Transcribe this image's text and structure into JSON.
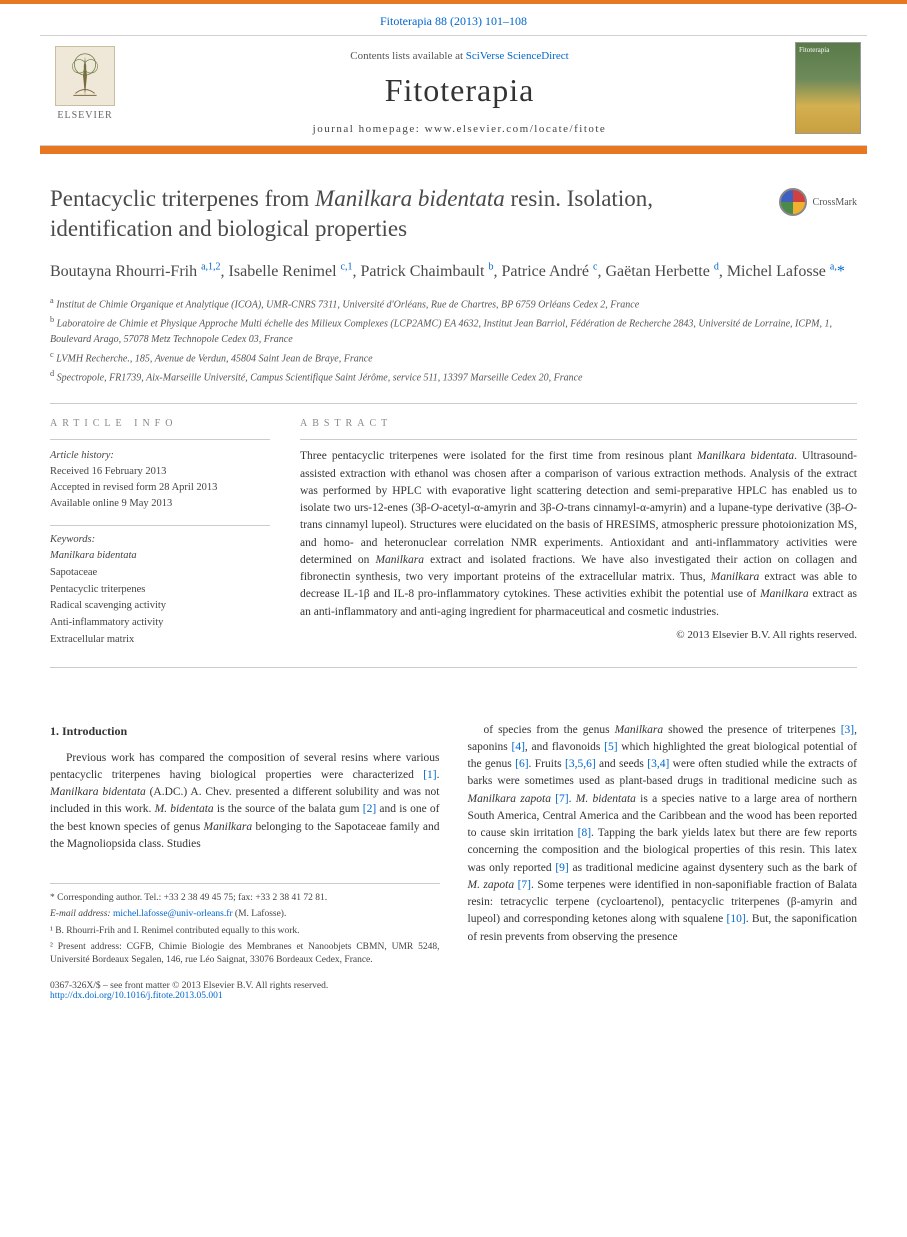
{
  "header": {
    "citation": "Fitoterapia 88 (2013) 101–108",
    "contents_prefix": "Contents lists available at ",
    "contents_link": "SciVerse ScienceDirect",
    "journal_name": "Fitoterapia",
    "homepage_prefix": "journal homepage: ",
    "homepage_url": "www.elsevier.com/locate/fitote",
    "publisher": "ELSEVIER"
  },
  "colors": {
    "accent": "#e87722",
    "link": "#0066cc",
    "text": "#333333",
    "muted": "#555555"
  },
  "article": {
    "title_1": "Pentacyclic triterpenes from ",
    "title_em": "Manilkara bidentata",
    "title_2": " resin. Isolation, identification and biological properties",
    "crossmark": "CrossMark",
    "authors_html": "Boutayna Rhourri-Frih <sup>a,1,2</sup>, Isabelle Renimel <sup>c,1</sup>, Patrick Chaimbault <sup>b</sup>, Patrice André <sup>c</sup>, Gaëtan Herbette <sup>d</sup>, Michel Lafosse <sup>a,</sup><span class='corr'>*</span>",
    "affiliations": [
      "<sup>a</sup> Institut de Chimie Organique et Analytique (ICOA), UMR-CNRS 7311, Université d'Orléans, Rue de Chartres, BP 6759 Orléans Cedex 2, France",
      "<sup>b</sup> Laboratoire de Chimie et Physique Approche Multi échelle des Milieux Complexes (LCP2AMC) EA 4632, Institut Jean Barriol, Fédération de Recherche 2843, Université de Lorraine, ICPM, 1, Boulevard Arago, 57078 Metz Technopole Cedex 03, France",
      "<sup>c</sup> LVMH Recherche., 185, Avenue de Verdun, 45804 Saint Jean de Braye, France",
      "<sup>d</sup> Spectropole, FR1739, Aix-Marseille Université, Campus Scientifique Saint Jérôme, service 511, 13397 Marseille Cedex 20, France"
    ]
  },
  "info": {
    "label": "ARTICLE INFO",
    "history_head": "Article history:",
    "history": [
      "Received 16 February 2013",
      "Accepted in revised form 28 April 2013",
      "Available online 9 May 2013"
    ],
    "keywords_head": "Keywords:",
    "keywords": [
      "Manilkara bidentata",
      "Sapotaceae",
      "Pentacyclic triterpenes",
      "Radical scavenging activity",
      "Anti-inflammatory activity",
      "Extracellular matrix"
    ]
  },
  "abstract": {
    "label": "ABSTRACT",
    "text": "Three pentacyclic triterpenes were isolated for the first time from resinous plant <em>Manilkara bidentata</em>. Ultrasound-assisted extraction with ethanol was chosen after a comparison of various extraction methods. Analysis of the extract was performed by HPLC with evaporative light scattering detection and semi-preparative HPLC has enabled us to isolate two urs-12-enes (3β-<em>O</em>-acetyl-α-amyrin and 3β-<em>O</em>-trans cinnamyl-α-amyrin) and a lupane-type derivative (3β-<em>O</em>-trans cinnamyl lupeol). Structures were elucidated on the basis of HRESIMS, atmospheric pressure photoionization MS, and homo- and heteronuclear correlation NMR experiments. Antioxidant and anti-inflammatory activities were determined on <em>Manilkara</em> extract and isolated fractions. We have also investigated their action on collagen and fibronectin synthesis, two very important proteins of the extracellular matrix. Thus, <em>Manilkara</em> extract was able to decrease IL-1β and IL-8 pro-inflammatory cytokines. These activities exhibit the potential use of <em>Manilkara</em> extract as an anti-inflammatory and anti-aging ingredient for pharmaceutical and cosmetic industries.",
    "copyright": "© 2013 Elsevier B.V. All rights reserved."
  },
  "body": {
    "section_head": "1. Introduction",
    "col1_p1": "Previous work has compared the composition of several resins where various pentacyclic triterpenes having biological properties were characterized <a>[1]</a>. <em>Manilkara bidentata</em> (A.DC.) A. Chev. presented a different solubility and was not included in this work. <em>M. bidentata</em> is the source of the balata gum <a>[2]</a> and is one of the best known species of genus <em>Manilkara</em> belonging to the Sapotaceae family and the Magnoliopsida class. Studies",
    "col2_p1": "of species from the genus <em>Manilkara</em> showed the presence of triterpenes <a>[3]</a>, saponins <a>[4]</a>, and flavonoids <a>[5]</a> which highlighted the great biological potential of the genus <a>[6]</a>. Fruits <a>[3,5,6]</a> and seeds <a>[3,4]</a> were often studied while the extracts of barks were sometimes used as plant-based drugs in traditional medicine such as <em>Manilkara zapota</em> <a>[7]</a>. <em>M. bidentata</em> is a species native to a large area of northern South America, Central America and the Caribbean and the wood has been reported to cause skin irritation <a>[8]</a>. Tapping the bark yields latex but there are few reports concerning the composition and the biological properties of this resin. This latex was only reported <a>[9]</a> as traditional medicine against dysentery such as the bark of <em>M. zapota</em> <a>[7]</a>. Some terpenes were identified in non-saponifiable fraction of Balata resin: tetracyclic terpene (cycloartenol), pentacyclic triterpenes (β-amyrin and lupeol) and corresponding ketones along with squalene <a>[10]</a>. But, the saponification of resin prevents from observing the presence"
  },
  "footnotes": {
    "corr": "* Corresponding author. Tel.: +33 2 38 49 45 75; fax: +33 2 38 41 72 81.",
    "email_label": "E-mail address: ",
    "email": "michel.lafosse@univ-orleans.fr",
    "email_after": " (M. Lafosse).",
    "fn1": "¹ B. Rhourri-Frih and I. Renimel contributed equally to this work.",
    "fn2": "² Present address: CGFB, Chimie Biologie des Membranes et Nanoobjets CBMN, UMR 5248, Université Bordeaux Segalen, 146, rue Léo Saignat, 33076 Bordeaux Cedex, France."
  },
  "bottom": {
    "front": "0367-326X/$ – see front matter © 2013 Elsevier B.V. All rights reserved.",
    "doi": "http://dx.doi.org/10.1016/j.fitote.2013.05.001"
  }
}
